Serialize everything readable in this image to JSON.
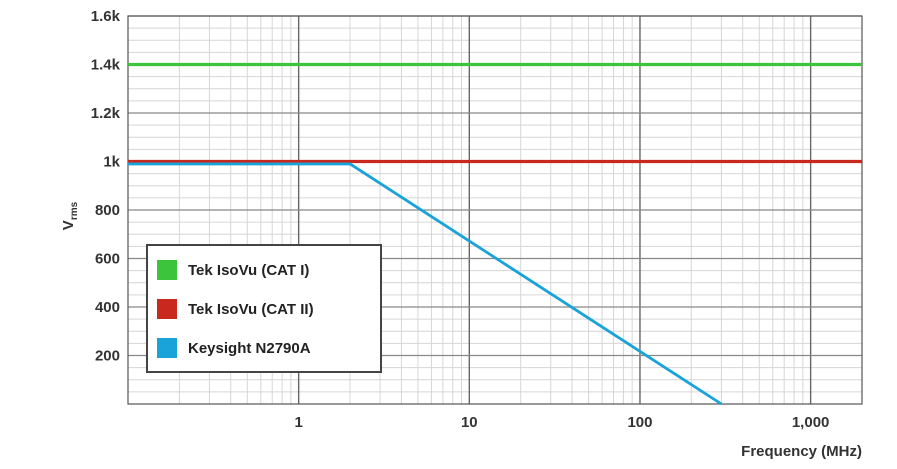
{
  "chart_data": {
    "type": "line",
    "xscale": "log",
    "xlabel": "Frequency (MHz)",
    "ylabel": "V",
    "ylabel_sub": "rms",
    "xlim": [
      0.1,
      2000
    ],
    "ylim": [
      0,
      1600
    ],
    "grid": true,
    "legend_position": "lower-left",
    "x_ticks": [
      {
        "value": 1,
        "label": "1"
      },
      {
        "value": 10,
        "label": "10"
      },
      {
        "value": 100,
        "label": "100"
      },
      {
        "value": 1000,
        "label": "1,000"
      }
    ],
    "y_ticks": [
      {
        "value": 200,
        "label": "200"
      },
      {
        "value": 400,
        "label": "400"
      },
      {
        "value": 600,
        "label": "600"
      },
      {
        "value": 800,
        "label": "800"
      },
      {
        "value": 1000,
        "label": "1k"
      },
      {
        "value": 1200,
        "label": "1.2k"
      },
      {
        "value": 1400,
        "label": "1.4k"
      },
      {
        "value": 1600,
        "label": "1.6k"
      }
    ],
    "series": [
      {
        "name": "Tek IsoVu (CAT I)",
        "color": "#3cc43c",
        "x": [
          0.1,
          2000
        ],
        "y": [
          1400,
          1400
        ]
      },
      {
        "name": "Tek IsoVu (CAT II)",
        "color": "#c8281e",
        "x": [
          0.1,
          2000
        ],
        "y": [
          1000,
          1000
        ]
      },
      {
        "name": "Keysight N2790A",
        "color": "#1aa3d9",
        "x": [
          0.1,
          2,
          300
        ],
        "y": [
          990,
          990,
          0
        ]
      }
    ]
  }
}
